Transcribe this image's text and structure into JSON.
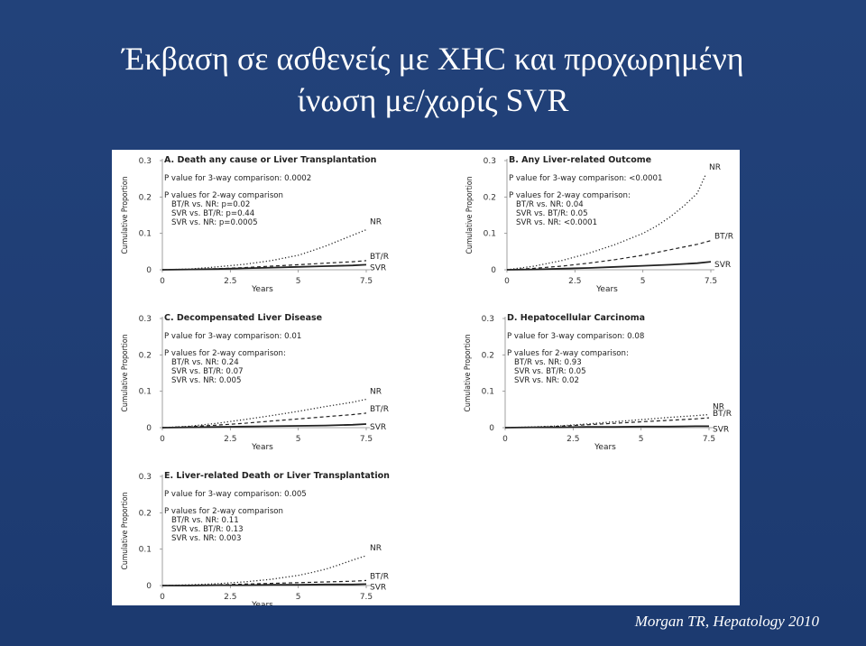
{
  "slide": {
    "title_line1": "Έκβαση σε ασθενείς με ΧΗC και προχωρημένη",
    "title_line2": "ίνωση με/χωρίς SVR",
    "citation": "Morgan TR, Hepatology 2010"
  },
  "chart_data": [
    {
      "type": "line",
      "title": "A. Death any cause or Liver Transplantation",
      "ylabel": "Cumulative Proportion",
      "xlabel": "Years",
      "xlim": [
        0,
        7.5
      ],
      "ylim": [
        0,
        0.3
      ],
      "xticks": [
        "0",
        "2.5",
        "5",
        "7.5"
      ],
      "yticks": [
        "0",
        "0.1",
        "0.2",
        "0.3"
      ],
      "annotations": [
        "P value for 3-way comparison: 0.0002",
        "P values for 2-way comparison",
        "BT/R vs. NR: p=0.02",
        "SVR vs. BT/R: p=0.44",
        "SVR vs. NR: p=0.0005"
      ],
      "series": [
        {
          "name": "NR",
          "style": "dotted",
          "x": [
            0,
            1,
            2,
            3,
            4,
            5,
            5.5,
            6,
            6.5,
            7,
            7.5
          ],
          "y": [
            0,
            0.002,
            0.008,
            0.015,
            0.025,
            0.04,
            0.052,
            0.065,
            0.08,
            0.095,
            0.11
          ]
        },
        {
          "name": "BT/R",
          "style": "dashed",
          "x": [
            0,
            1,
            2,
            3,
            4,
            5,
            6,
            7,
            7.5
          ],
          "y": [
            0,
            0.001,
            0.003,
            0.006,
            0.01,
            0.014,
            0.018,
            0.022,
            0.025
          ]
        },
        {
          "name": "SVR",
          "style": "solid",
          "x": [
            0,
            1,
            2,
            3,
            4,
            5,
            6,
            7,
            7.5
          ],
          "y": [
            0,
            0.001,
            0.002,
            0.004,
            0.006,
            0.008,
            0.01,
            0.012,
            0.014
          ]
        }
      ]
    },
    {
      "type": "line",
      "title": "B. Any Liver-related Outcome",
      "ylabel": "Cumulative Proportion",
      "xlabel": "Years",
      "xlim": [
        0,
        7.5
      ],
      "ylim": [
        0,
        0.3
      ],
      "xticks": [
        "0",
        "2.5",
        "5",
        "7.5"
      ],
      "yticks": [
        "0",
        "0.1",
        "0.2",
        "0.3"
      ],
      "annotations": [
        "P value for 3-way comparison: <0.0001",
        "P values for 2-way comparison:",
        "BT/R vs. NR: 0.04",
        "SVR vs. BT/R: 0.05",
        "SVR vs. NR: <0.0001"
      ],
      "series": [
        {
          "name": "NR",
          "style": "dotted",
          "x": [
            0,
            1,
            2,
            3,
            4,
            5,
            5.5,
            6,
            6.5,
            7,
            7.3
          ],
          "y": [
            0,
            0.01,
            0.025,
            0.045,
            0.07,
            0.1,
            0.12,
            0.145,
            0.175,
            0.21,
            0.26
          ]
        },
        {
          "name": "BT/R",
          "style": "dashed",
          "x": [
            0,
            1,
            2,
            3,
            4,
            5,
            6,
            7,
            7.5
          ],
          "y": [
            0,
            0.004,
            0.01,
            0.018,
            0.028,
            0.04,
            0.055,
            0.07,
            0.08
          ]
        },
        {
          "name": "SVR",
          "style": "solid",
          "x": [
            0,
            1,
            2,
            3,
            4,
            5,
            6,
            7,
            7.5
          ],
          "y": [
            0,
            0.001,
            0.003,
            0.005,
            0.008,
            0.011,
            0.014,
            0.018,
            0.022
          ]
        }
      ]
    },
    {
      "type": "line",
      "title": "C. Decompensated Liver Disease",
      "ylabel": "Cumulative Proportion",
      "xlabel": "Years",
      "xlim": [
        0,
        7.5
      ],
      "ylim": [
        0,
        0.3
      ],
      "xticks": [
        "0",
        "2.5",
        "5",
        "7.5"
      ],
      "yticks": [
        "0",
        "0.1",
        "0.2",
        "0.3"
      ],
      "annotations": [
        "P value for 3-way comparison: 0.01",
        "P values for 2-way comparison:",
        "BT/R vs. NR: 0.24",
        "SVR vs. BT/R: 0.07",
        "SVR vs. NR: 0.005"
      ],
      "series": [
        {
          "name": "NR",
          "style": "dotted",
          "x": [
            0,
            1,
            2,
            3,
            4,
            5,
            6,
            7,
            7.5
          ],
          "y": [
            0,
            0.004,
            0.012,
            0.022,
            0.033,
            0.045,
            0.058,
            0.07,
            0.078
          ]
        },
        {
          "name": "BT/R",
          "style": "dashed",
          "x": [
            0,
            1,
            2,
            3,
            4,
            5,
            6,
            7,
            7.5
          ],
          "y": [
            0,
            0.003,
            0.007,
            0.012,
            0.018,
            0.024,
            0.03,
            0.036,
            0.04
          ]
        },
        {
          "name": "SVR",
          "style": "solid",
          "x": [
            0,
            1,
            2,
            3,
            4,
            5,
            6,
            7,
            7.5
          ],
          "y": [
            0,
            0.001,
            0.002,
            0.003,
            0.004,
            0.005,
            0.006,
            0.008,
            0.01
          ]
        }
      ]
    },
    {
      "type": "line",
      "title": "D. Hepatocellular Carcinoma",
      "ylabel": "Cumulative Proportion",
      "xlabel": "Years",
      "xlim": [
        0,
        7.5
      ],
      "ylim": [
        0,
        0.3
      ],
      "xticks": [
        "0",
        "2.5",
        "5",
        "7.5"
      ],
      "yticks": [
        "0",
        "0.1",
        "0.2",
        "0.3"
      ],
      "annotations": [
        "P value for 3-way comparison: 0.08",
        "P values for 2-way comparison:",
        "BT/R vs. NR: 0.93",
        "SVR vs. BT/R: 0.05",
        "SVR vs. NR: 0.02"
      ],
      "series": [
        {
          "name": "NR",
          "style": "dotted",
          "x": [
            0,
            1,
            2,
            3,
            4,
            5,
            6,
            7,
            7.5
          ],
          "y": [
            0,
            0.002,
            0.005,
            0.01,
            0.016,
            0.022,
            0.028,
            0.033,
            0.036
          ]
        },
        {
          "name": "BT/R",
          "style": "dashed",
          "x": [
            0,
            1,
            2,
            3,
            4,
            5,
            6,
            7,
            7.5
          ],
          "y": [
            0,
            0.001,
            0.004,
            0.008,
            0.012,
            0.016,
            0.02,
            0.024,
            0.027
          ]
        },
        {
          "name": "SVR",
          "style": "solid",
          "x": [
            0,
            1,
            2,
            3,
            4,
            5,
            6,
            7,
            7.5
          ],
          "y": [
            0,
            0.001,
            0.001,
            0.002,
            0.002,
            0.003,
            0.003,
            0.004,
            0.004
          ]
        }
      ]
    },
    {
      "type": "line",
      "title": "E. Liver-related Death or Liver Transplantation",
      "ylabel": "Cumulative Proportion",
      "xlabel": "Years",
      "xlim": [
        0,
        7.5
      ],
      "ylim": [
        0,
        0.3
      ],
      "xticks": [
        "0",
        "2.5",
        "5",
        "7.5"
      ],
      "yticks": [
        "0",
        "0.1",
        "0.2",
        "0.3"
      ],
      "annotations": [
        "P value for 3-way comparison: 0.005",
        "P values for 2-way comparison",
        "BT/R vs. NR: 0.11",
        "SVR vs. BT/R: 0.13",
        "SVR vs. NR: 0.003"
      ],
      "series": [
        {
          "name": "NR",
          "style": "dotted",
          "x": [
            0,
            1,
            2,
            3,
            4,
            5,
            5.5,
            6,
            6.5,
            7,
            7.5
          ],
          "y": [
            0,
            0.002,
            0.005,
            0.01,
            0.017,
            0.028,
            0.036,
            0.045,
            0.057,
            0.07,
            0.082
          ]
        },
        {
          "name": "BT/R",
          "style": "dashed",
          "x": [
            0,
            1,
            2,
            3,
            4,
            5,
            6,
            7,
            7.5
          ],
          "y": [
            0,
            0.001,
            0.002,
            0.004,
            0.006,
            0.008,
            0.01,
            0.012,
            0.014
          ]
        },
        {
          "name": "SVR",
          "style": "solid",
          "x": [
            0,
            1,
            2,
            3,
            4,
            5,
            6,
            7,
            7.5
          ],
          "y": [
            0,
            0.0,
            0.001,
            0.001,
            0.002,
            0.002,
            0.003,
            0.003,
            0.004
          ]
        }
      ]
    }
  ]
}
